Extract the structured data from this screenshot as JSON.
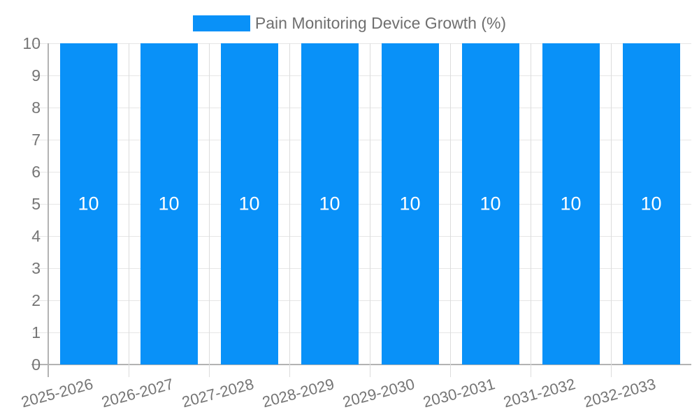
{
  "chart_data": {
    "type": "bar",
    "title": "",
    "legend": {
      "position": "top-center",
      "label": "Pain Monitoring Device Growth (%)"
    },
    "categories": [
      "2025-2026",
      "2026-2027",
      "2027-2028",
      "2028-2029",
      "2029-2030",
      "2030-2031",
      "2031-2032",
      "2032-2033"
    ],
    "series": [
      {
        "name": "Pain Monitoring Device Growth (%)",
        "values": [
          10,
          10,
          10,
          10,
          10,
          10,
          10,
          10
        ]
      }
    ],
    "bar_value_labels": [
      "10",
      "10",
      "10",
      "10",
      "10",
      "10",
      "10",
      "10"
    ],
    "xlabel": "",
    "ylabel": "",
    "ylim": [
      0,
      10
    ],
    "ytick_labels": [
      "0",
      "1",
      "2",
      "3",
      "4",
      "5",
      "6",
      "7",
      "8",
      "9",
      "10"
    ],
    "grid": true,
    "x_label_rotation_deg": -15,
    "colors": {
      "bar": "#0991f8",
      "value_label": "#ffffff",
      "axis_text": "#757575",
      "legend_text": "#6f6f6f",
      "gridline_h": "#e6e6e6",
      "gridline_v": "#dcdcdc",
      "axis_line": "#b3b3b3",
      "background": "#ffffff"
    }
  }
}
